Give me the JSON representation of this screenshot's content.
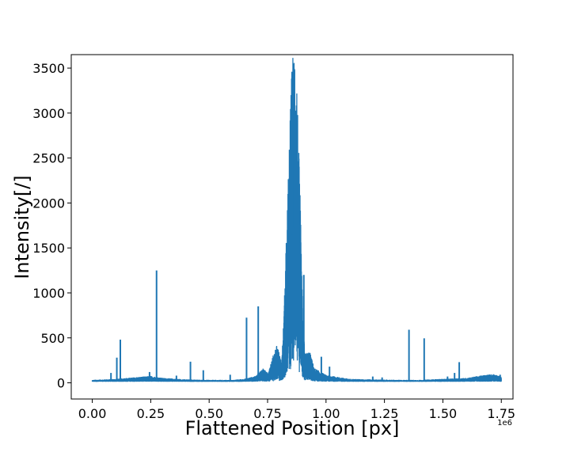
{
  "chart_data": {
    "type": "line",
    "title": "",
    "xlabel": "Flattened Position [px]",
    "ylabel": "Intensity[/]",
    "x_offset_label": "1e6",
    "xlim": [
      -0.09,
      1.8
    ],
    "ylim": [
      -180,
      3650
    ],
    "x_ticks": [
      0.0,
      0.25,
      0.5,
      0.75,
      1.0,
      1.25,
      1.5,
      1.75
    ],
    "x_tick_labels": [
      "0.00",
      "0.25",
      "0.50",
      "0.75",
      "1.00",
      "1.25",
      "1.50",
      "1.75"
    ],
    "y_ticks": [
      0,
      500,
      1000,
      1500,
      2000,
      2500,
      3000,
      3500
    ],
    "y_tick_labels": [
      "0",
      "500",
      "1000",
      "1500",
      "2000",
      "2500",
      "3000",
      "3500"
    ],
    "grid": false,
    "line_color": "#1f77b4",
    "x_range": [
      0.0,
      1.75
    ],
    "baseline_profile": [
      [
        0.0,
        30
      ],
      [
        0.1,
        40
      ],
      [
        0.2,
        60
      ],
      [
        0.25,
        70
      ],
      [
        0.3,
        50
      ],
      [
        0.4,
        35
      ],
      [
        0.5,
        30
      ],
      [
        0.6,
        30
      ],
      [
        0.65,
        40
      ],
      [
        0.7,
        70
      ],
      [
        0.73,
        150
      ],
      [
        0.75,
        100
      ],
      [
        0.77,
        250
      ],
      [
        0.79,
        400
      ],
      [
        0.81,
        200
      ],
      [
        0.82,
        700
      ],
      [
        0.84,
        2200
      ],
      [
        0.855,
        3300
      ],
      [
        0.865,
        3450
      ],
      [
        0.875,
        3100
      ],
      [
        0.89,
        1800
      ],
      [
        0.9,
        700
      ],
      [
        0.91,
        300
      ],
      [
        0.93,
        320
      ],
      [
        0.95,
        150
      ],
      [
        1.0,
        80
      ],
      [
        1.05,
        60
      ],
      [
        1.1,
        40
      ],
      [
        1.2,
        35
      ],
      [
        1.3,
        30
      ],
      [
        1.4,
        30
      ],
      [
        1.5,
        40
      ],
      [
        1.6,
        50
      ],
      [
        1.68,
        80
      ],
      [
        1.72,
        90
      ],
      [
        1.75,
        60
      ]
    ],
    "spikes": [
      {
        "x": 0.08,
        "y": 110
      },
      {
        "x": 0.105,
        "y": 280
      },
      {
        "x": 0.12,
        "y": 480
      },
      {
        "x": 0.245,
        "y": 120
      },
      {
        "x": 0.275,
        "y": 1250
      },
      {
        "x": 0.36,
        "y": 80
      },
      {
        "x": 0.42,
        "y": 235
      },
      {
        "x": 0.475,
        "y": 140
      },
      {
        "x": 0.59,
        "y": 90
      },
      {
        "x": 0.66,
        "y": 725
      },
      {
        "x": 0.71,
        "y": 850
      },
      {
        "x": 0.855,
        "y": 3460
      },
      {
        "x": 0.865,
        "y": 3480
      },
      {
        "x": 0.905,
        "y": 1200
      },
      {
        "x": 0.98,
        "y": 290
      },
      {
        "x": 1.015,
        "y": 180
      },
      {
        "x": 1.2,
        "y": 70
      },
      {
        "x": 1.24,
        "y": 60
      },
      {
        "x": 1.355,
        "y": 590
      },
      {
        "x": 1.42,
        "y": 495
      },
      {
        "x": 1.52,
        "y": 70
      },
      {
        "x": 1.55,
        "y": 110
      },
      {
        "x": 1.57,
        "y": 230
      },
      {
        "x": 1.745,
        "y": 90
      }
    ]
  }
}
